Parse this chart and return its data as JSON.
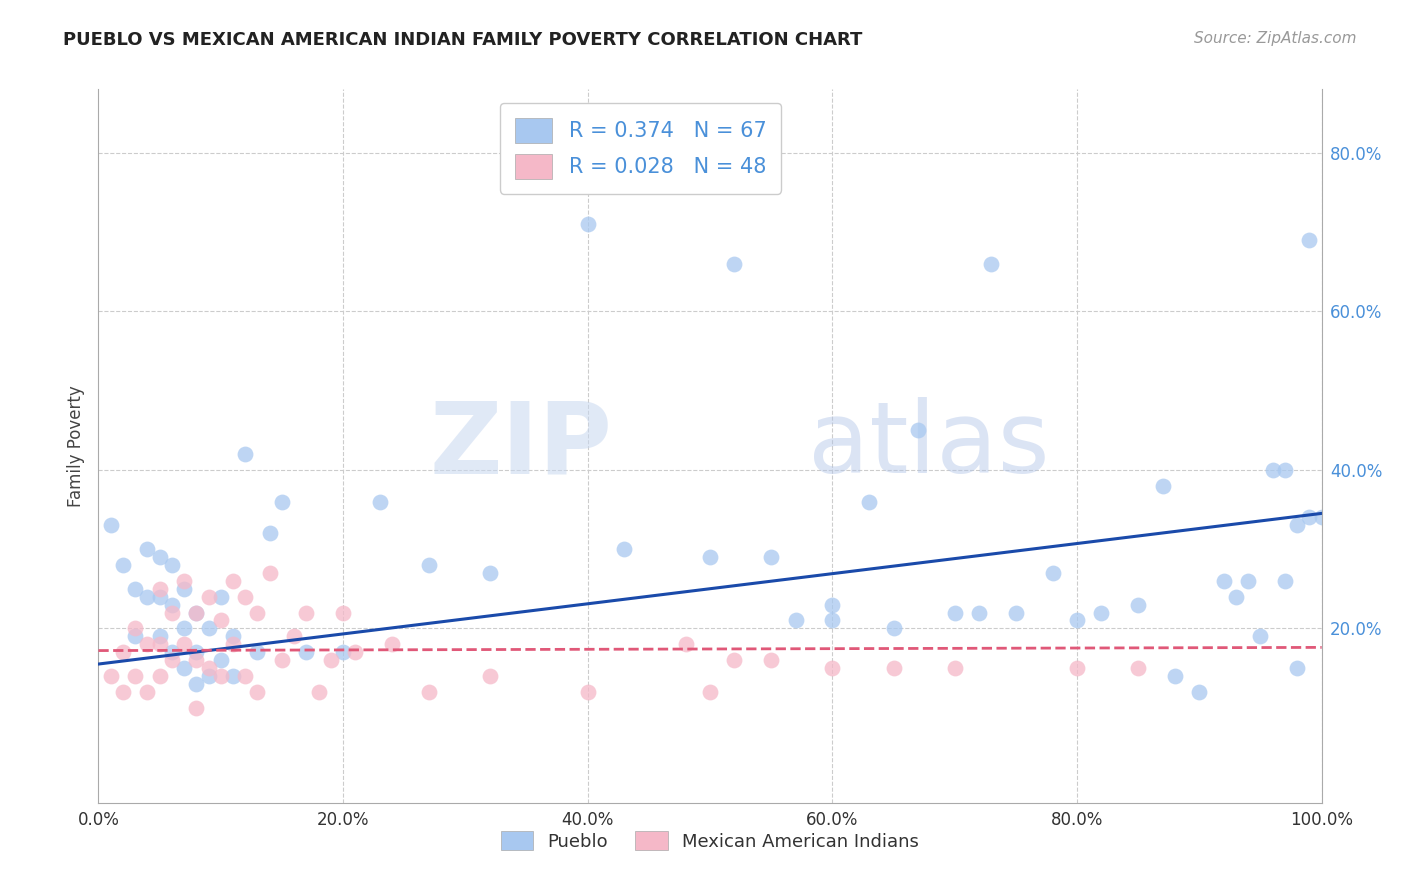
{
  "title": "PUEBLO VS MEXICAN AMERICAN INDIAN FAMILY POVERTY CORRELATION CHART",
  "source": "Source: ZipAtlas.com",
  "ylabel": "Family Poverty",
  "pueblo_R": 0.374,
  "pueblo_N": 67,
  "mexican_R": 0.028,
  "mexican_N": 48,
  "pueblo_color": "#a8c8f0",
  "mexican_color": "#f5b8c8",
  "pueblo_line_color": "#1a4aaa",
  "mexican_line_color": "#e05878",
  "watermark_zip": "ZIP",
  "watermark_atlas": "atlas",
  "xlim": [
    0,
    1.0
  ],
  "ylim": [
    -0.02,
    0.88
  ],
  "xticks": [
    0.0,
    0.2,
    0.4,
    0.6,
    0.8,
    1.0
  ],
  "xticklabels": [
    "0.0%",
    "20.0%",
    "40.0%",
    "60.0%",
    "80.0%",
    "100.0%"
  ],
  "yticks_right": [
    0.2,
    0.4,
    0.6,
    0.8
  ],
  "yticklabels_right": [
    "20.0%",
    "40.0%",
    "60.0%",
    "80.0%"
  ],
  "pueblo_x": [
    0.01,
    0.02,
    0.03,
    0.03,
    0.04,
    0.04,
    0.05,
    0.05,
    0.05,
    0.06,
    0.06,
    0.06,
    0.07,
    0.07,
    0.07,
    0.08,
    0.08,
    0.08,
    0.09,
    0.09,
    0.1,
    0.1,
    0.11,
    0.11,
    0.12,
    0.13,
    0.14,
    0.15,
    0.17,
    0.2,
    0.23,
    0.27,
    0.32,
    0.4,
    0.43,
    0.5,
    0.52,
    0.55,
    0.57,
    0.6,
    0.6,
    0.63,
    0.65,
    0.67,
    0.7,
    0.72,
    0.73,
    0.75,
    0.78,
    0.8,
    0.82,
    0.85,
    0.87,
    0.88,
    0.9,
    0.92,
    0.93,
    0.94,
    0.95,
    0.96,
    0.97,
    0.97,
    0.98,
    0.98,
    0.99,
    0.99,
    1.0
  ],
  "pueblo_y": [
    0.33,
    0.28,
    0.25,
    0.19,
    0.3,
    0.24,
    0.29,
    0.24,
    0.19,
    0.28,
    0.23,
    0.17,
    0.25,
    0.2,
    0.15,
    0.22,
    0.17,
    0.13,
    0.2,
    0.14,
    0.24,
    0.16,
    0.19,
    0.14,
    0.42,
    0.17,
    0.32,
    0.36,
    0.17,
    0.17,
    0.36,
    0.28,
    0.27,
    0.71,
    0.3,
    0.29,
    0.66,
    0.29,
    0.21,
    0.21,
    0.23,
    0.36,
    0.2,
    0.45,
    0.22,
    0.22,
    0.66,
    0.22,
    0.27,
    0.21,
    0.22,
    0.23,
    0.38,
    0.14,
    0.12,
    0.26,
    0.24,
    0.26,
    0.19,
    0.4,
    0.4,
    0.26,
    0.15,
    0.33,
    0.34,
    0.69,
    0.34
  ],
  "mexican_x": [
    0.01,
    0.02,
    0.02,
    0.03,
    0.03,
    0.04,
    0.04,
    0.05,
    0.05,
    0.05,
    0.06,
    0.06,
    0.07,
    0.07,
    0.08,
    0.08,
    0.08,
    0.09,
    0.09,
    0.1,
    0.1,
    0.11,
    0.11,
    0.12,
    0.12,
    0.13,
    0.13,
    0.14,
    0.15,
    0.16,
    0.17,
    0.18,
    0.19,
    0.2,
    0.21,
    0.24,
    0.27,
    0.32,
    0.4,
    0.48,
    0.5,
    0.52,
    0.55,
    0.6,
    0.65,
    0.7,
    0.8,
    0.85
  ],
  "mexican_y": [
    0.14,
    0.17,
    0.12,
    0.2,
    0.14,
    0.18,
    0.12,
    0.25,
    0.18,
    0.14,
    0.22,
    0.16,
    0.26,
    0.18,
    0.22,
    0.16,
    0.1,
    0.24,
    0.15,
    0.21,
    0.14,
    0.26,
    0.18,
    0.24,
    0.14,
    0.22,
    0.12,
    0.27,
    0.16,
    0.19,
    0.22,
    0.12,
    0.16,
    0.22,
    0.17,
    0.18,
    0.12,
    0.14,
    0.12,
    0.18,
    0.12,
    0.16,
    0.16,
    0.15,
    0.15,
    0.15,
    0.15,
    0.15
  ],
  "pueblo_line_x": [
    0.0,
    1.0
  ],
  "pueblo_line_y": [
    0.155,
    0.345
  ],
  "mexican_line_x": [
    0.0,
    1.0
  ],
  "mexican_line_y": [
    0.172,
    0.176
  ]
}
